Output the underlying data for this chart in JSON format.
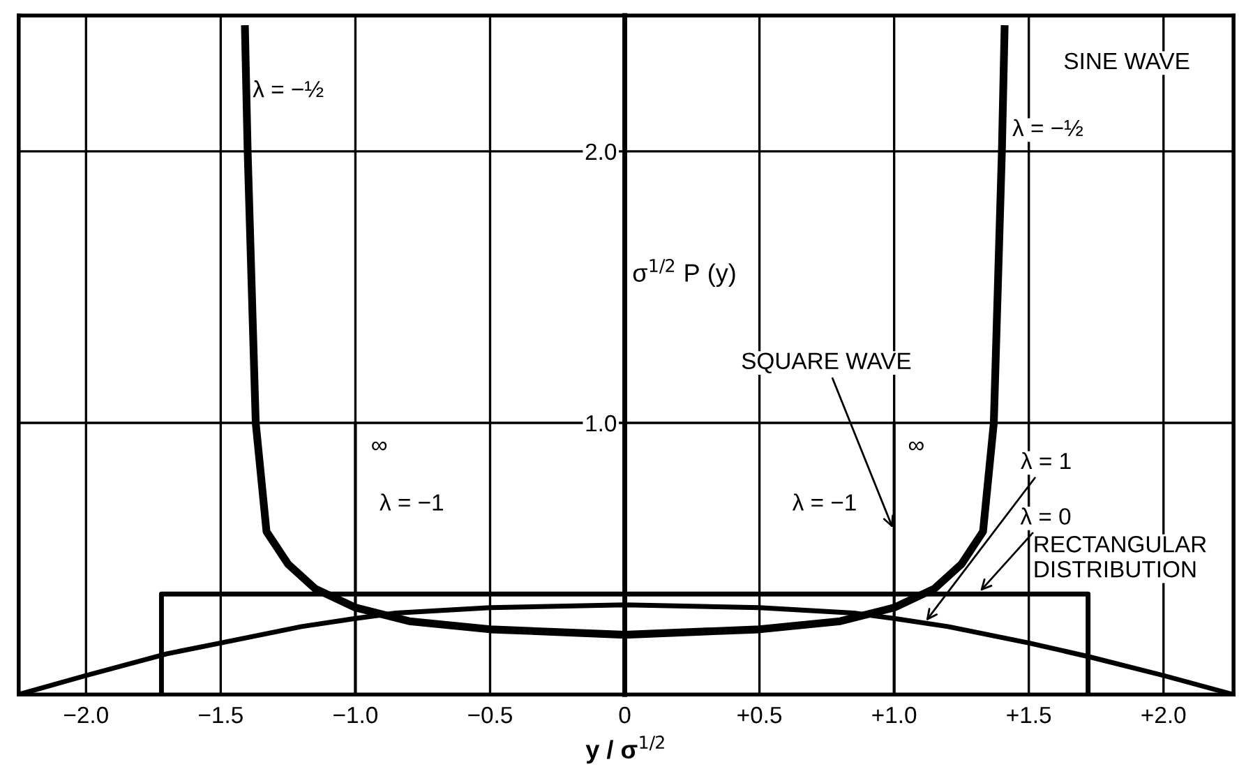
{
  "chart_data": {
    "type": "line",
    "xlabel": "y / σ$^{1/2}$",
    "ylabel": "σ$^{1/2}$ P (y)",
    "xlim": [
      -2.25,
      2.26
    ],
    "ylim": [
      0,
      2.5
    ],
    "xticks": [
      {
        "value": -2.0,
        "label": "−2.0"
      },
      {
        "value": -1.5,
        "label": "−1.5"
      },
      {
        "value": -1.0,
        "label": "−1.0"
      },
      {
        "value": -0.5,
        "label": "−0.5"
      },
      0,
      {
        "value": 0.5,
        "label": "+0.5"
      },
      {
        "value": 1.0,
        "label": "+1.0"
      },
      {
        "value": 1.5,
        "label": "+1.5"
      },
      {
        "value": 2.0,
        "label": "+2.0"
      }
    ],
    "yticks": [
      {
        "value": 0,
        "label": null
      },
      {
        "value": 1.0,
        "label": "1.0"
      },
      {
        "value": 2.0,
        "label": "2.0"
      }
    ],
    "grid": true,
    "legend": false,
    "marker": "none",
    "line_style": "solid",
    "series": [
      {
        "color": "#000000",
        "x": [
          -1.41,
          -1.4,
          -1.37,
          -1.33,
          -1.25,
          -1.15,
          -1.0,
          -0.8,
          -0.5,
          0,
          0.5,
          0.8,
          1.0,
          1.15,
          1.25,
          1.33,
          1.37,
          1.4,
          1.41
        ],
        "values": [
          2.45,
          2.0,
          1.0,
          0.6,
          0.48,
          0.39,
          0.32,
          0.27,
          0.24,
          0.22,
          0.24,
          0.27,
          0.32,
          0.39,
          0.48,
          0.6,
          1.0,
          2.0,
          2.45
        ]
      },
      {
        "color": "#000000",
        "x": [
          -1.72,
          -1.72,
          1.72,
          1.72
        ],
        "values": [
          0,
          0.37,
          0.37,
          0
        ]
      },
      {
        "color": "#000000",
        "x": [
          -2.25,
          -2.0,
          -1.7,
          -1.5,
          -1.2,
          -1.0,
          -0.85,
          -0.5,
          0,
          0.5,
          0.85,
          1.0,
          1.2,
          1.5,
          1.72,
          2.0,
          2.26
        ],
        "values": [
          0,
          0.07,
          0.15,
          0.19,
          0.25,
          0.28,
          0.3,
          0.32,
          0.33,
          0.32,
          0.3,
          0.28,
          0.25,
          0.19,
          0.14,
          0.07,
          0
        ]
      },
      {
        "color": "#000000",
        "x": [
          -1.0,
          -1.0
        ],
        "values": [
          0,
          1.0
        ]
      },
      {
        "color": "#000000",
        "x": [
          1.0,
          1.0
        ],
        "values": [
          0,
          1.0
        ]
      }
    ],
    "annotations": [
      "SINE WAVE",
      {
        "text": "λ = −½",
        "x": -1.41,
        "y": 2.25
      },
      {
        "text": "λ = −½",
        "x": 1.41,
        "y": 2.05
      },
      "∞",
      "∞",
      "λ = −1",
      "λ = −1",
      {
        "text": "SQUARE WAVE",
        "x": 1.0,
        "y": 0.6
      },
      {
        "text": "λ = 1",
        "x": 1.11,
        "y": 0.26
      },
      {
        "text": "λ = 0",
        "x": 1.31,
        "y": 0.37
      },
      "RECTANGULAR DISTRIBUTION"
    ]
  }
}
